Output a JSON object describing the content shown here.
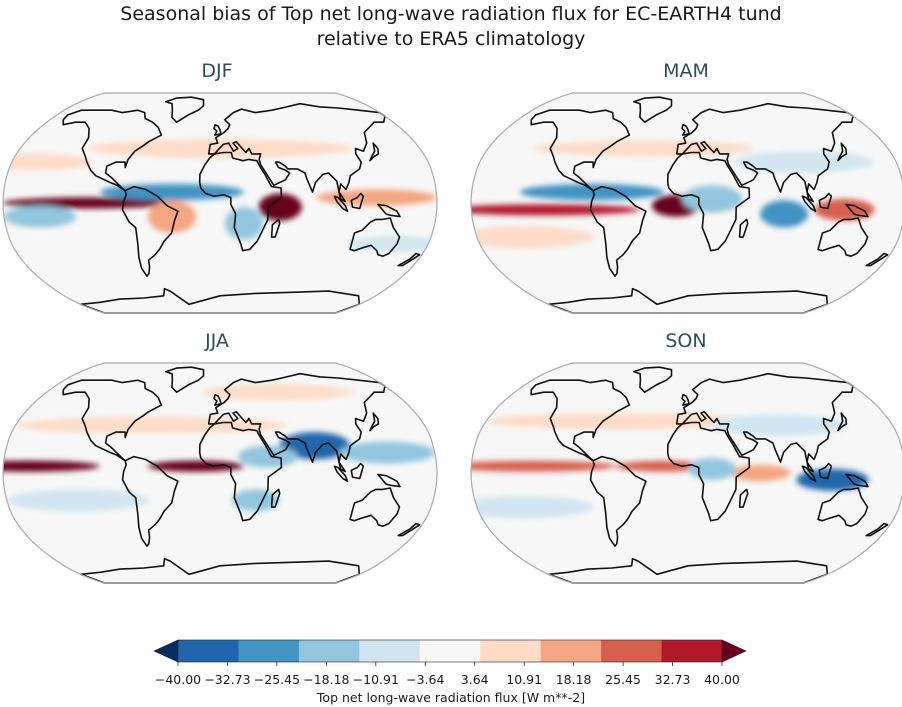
{
  "figure": {
    "title_line1": "Seasonal bias of Top net long-wave radiation flux for EC-EARTH4 tund",
    "title_line2": "relative to ERA5 climatology"
  },
  "chart_data": {
    "type": "heatmap",
    "projection": "Robinson (global maps)",
    "panels": [
      {
        "name": "DJF",
        "features": [
          {
            "lon": -110,
            "lat": 0,
            "w": 70,
            "h": 4,
            "value": 34,
            "kind": "zonal"
          },
          {
            "lon": -40,
            "lat": -10,
            "w": 20,
            "h": 12,
            "value": 15
          },
          {
            "lon": 50,
            "lat": -3,
            "w": 18,
            "h": 10,
            "value": 36
          },
          {
            "lon": 130,
            "lat": 4,
            "w": 50,
            "h": 6,
            "value": 15
          },
          {
            "lon": -150,
            "lat": -10,
            "w": 30,
            "h": 8,
            "value": -18
          },
          {
            "lon": -40,
            "lat": 8,
            "w": 60,
            "h": 6,
            "value": -20
          },
          {
            "lon": 20,
            "lat": -15,
            "w": 16,
            "h": 12,
            "value": -14
          },
          {
            "lon": 0,
            "lat": 40,
            "w": 120,
            "h": 7,
            "value": 10
          },
          {
            "lon": -160,
            "lat": 30,
            "w": 50,
            "h": 6,
            "value": 9
          },
          {
            "lon": 150,
            "lat": -30,
            "w": 40,
            "h": 6,
            "value": -10
          }
        ]
      },
      {
        "name": "MAM",
        "features": [
          {
            "lon": -120,
            "lat": -5,
            "w": 80,
            "h": 4,
            "value": 28,
            "kind": "zonal"
          },
          {
            "lon": -10,
            "lat": -2,
            "w": 20,
            "h": 8,
            "value": 38
          },
          {
            "lon": -80,
            "lat": 8,
            "w": 60,
            "h": 6,
            "value": -22
          },
          {
            "lon": 20,
            "lat": 3,
            "w": 25,
            "h": 10,
            "value": -16
          },
          {
            "lon": 80,
            "lat": -8,
            "w": 20,
            "h": 10,
            "value": -20
          },
          {
            "lon": 130,
            "lat": -5,
            "w": 25,
            "h": 8,
            "value": 20
          },
          {
            "lon": -40,
            "lat": 40,
            "w": 100,
            "h": 6,
            "value": 10
          },
          {
            "lon": 100,
            "lat": 30,
            "w": 60,
            "h": 8,
            "value": -9
          },
          {
            "lon": -140,
            "lat": -25,
            "w": 60,
            "h": 8,
            "value": 8
          }
        ]
      },
      {
        "name": "JJA",
        "features": [
          {
            "lon": -160,
            "lat": 5,
            "w": 60,
            "h": 4,
            "value": 34,
            "kind": "zonal"
          },
          {
            "lon": -20,
            "lat": 5,
            "w": 40,
            "h": 4,
            "value": 38
          },
          {
            "lon": 80,
            "lat": 20,
            "w": 30,
            "h": 10,
            "value": -30
          },
          {
            "lon": 40,
            "lat": 12,
            "w": 25,
            "h": 8,
            "value": -18
          },
          {
            "lon": 140,
            "lat": 15,
            "w": 40,
            "h": 8,
            "value": -12
          },
          {
            "lon": -60,
            "lat": 35,
            "w": 120,
            "h": 6,
            "value": 9
          },
          {
            "lon": 60,
            "lat": 60,
            "w": 80,
            "h": 6,
            "value": 10
          },
          {
            "lon": -120,
            "lat": -20,
            "w": 60,
            "h": 8,
            "value": -10
          },
          {
            "lon": 30,
            "lat": -20,
            "w": 20,
            "h": 8,
            "value": -12
          }
        ]
      },
      {
        "name": "SON",
        "features": [
          {
            "lon": -130,
            "lat": 5,
            "w": 70,
            "h": 4,
            "value": 24,
            "kind": "zonal"
          },
          {
            "lon": -20,
            "lat": 5,
            "w": 40,
            "h": 4,
            "value": 22
          },
          {
            "lon": 120,
            "lat": -5,
            "w": 30,
            "h": 8,
            "value": -26
          },
          {
            "lon": 60,
            "lat": 0,
            "w": 25,
            "h": 6,
            "value": 18
          },
          {
            "lon": 20,
            "lat": 3,
            "w": 20,
            "h": 8,
            "value": -14
          },
          {
            "lon": -60,
            "lat": 38,
            "w": 120,
            "h": 6,
            "value": 9
          },
          {
            "lon": 80,
            "lat": 35,
            "w": 60,
            "h": 8,
            "value": -10
          },
          {
            "lon": -140,
            "lat": -25,
            "w": 60,
            "h": 8,
            "value": -9
          }
        ]
      }
    ],
    "colorbar": {
      "label": "Top net long-wave radiation flux [W m**-2]",
      "levels": [
        -40.0,
        -32.73,
        -25.45,
        -18.18,
        -10.91,
        -3.64,
        3.64,
        10.91,
        18.18,
        25.45,
        32.73,
        40.0
      ],
      "tick_labels": [
        "−40.00",
        "−32.73",
        "−25.45",
        "−18.18",
        "−10.91",
        "−3.64",
        "3.64",
        "10.91",
        "18.18",
        "25.45",
        "32.73",
        "40.00"
      ],
      "colors": [
        "#053061",
        "#2166ac",
        "#4393c3",
        "#92c5de",
        "#d1e5f0",
        "#f7f7f7",
        "#fddbc7",
        "#f4a582",
        "#d6604d",
        "#b2182b",
        "#67001f"
      ],
      "extend": "both"
    }
  }
}
